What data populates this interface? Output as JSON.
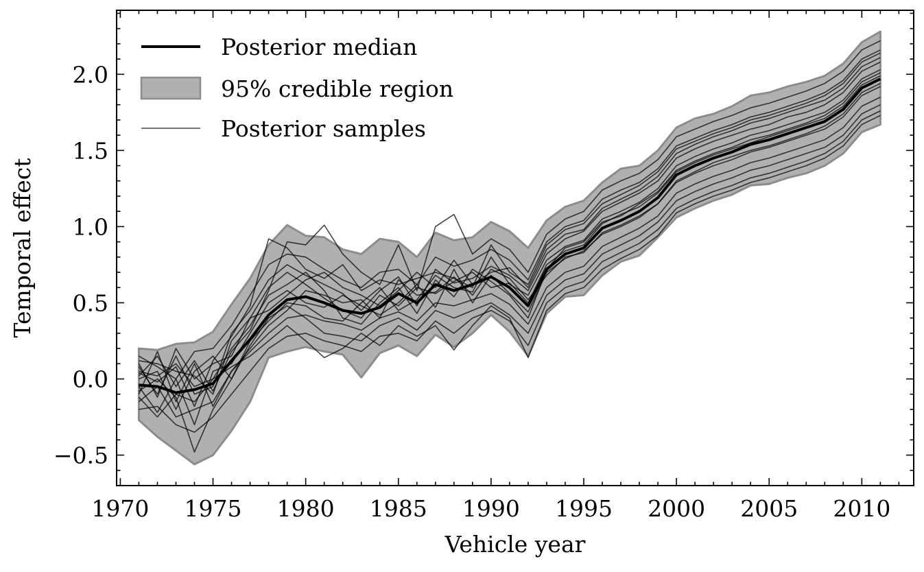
{
  "chart_data": {
    "type": "line",
    "xlabel": "Vehicle year",
    "ylabel": "Temporal effect",
    "xlim": [
      1969.8,
      2012.8
    ],
    "ylim": [
      -0.7,
      2.42
    ],
    "x_ticks": [
      1970,
      1975,
      1980,
      1985,
      1990,
      1995,
      2000,
      2005,
      2010
    ],
    "y_ticks": [
      -0.5,
      0.0,
      0.5,
      1.0,
      1.5,
      2.0
    ],
    "x_tick_labels": [
      "1970",
      "1975",
      "1980",
      "1985",
      "1990",
      "1995",
      "2000",
      "2005",
      "2010"
    ],
    "y_tick_labels": [
      "−0.5",
      "0.0",
      "0.5",
      "1.0",
      "1.5",
      "2.0"
    ],
    "grid": false,
    "legend_placement": "top-left",
    "x": [
      1971,
      1972,
      1973,
      1974,
      1975,
      1976,
      1977,
      1978,
      1979,
      1980,
      1981,
      1982,
      1983,
      1984,
      1985,
      1986,
      1987,
      1988,
      1989,
      1990,
      1991,
      1992,
      1993,
      1994,
      1995,
      1996,
      1997,
      1998,
      1999,
      2000,
      2001,
      2002,
      2003,
      2004,
      2005,
      2006,
      2007,
      2008,
      2009,
      2010,
      2011
    ],
    "series": [
      {
        "name": "Posterior median",
        "role": "median",
        "color": "#000000",
        "values": [
          -0.04,
          -0.05,
          -0.09,
          -0.07,
          -0.03,
          0.12,
          0.26,
          0.42,
          0.52,
          0.54,
          0.5,
          0.45,
          0.43,
          0.47,
          0.56,
          0.5,
          0.62,
          0.58,
          0.62,
          0.67,
          0.6,
          0.48,
          0.72,
          0.82,
          0.86,
          0.99,
          1.04,
          1.1,
          1.19,
          1.34,
          1.4,
          1.45,
          1.49,
          1.54,
          1.57,
          1.61,
          1.65,
          1.69,
          1.77,
          1.91,
          1.97
        ]
      },
      {
        "name": "95% credible region",
        "role": "band",
        "color": "#b0b0b0",
        "lower": [
          -0.27,
          -0.38,
          -0.47,
          -0.56,
          -0.5,
          -0.34,
          -0.15,
          0.14,
          0.18,
          0.21,
          0.18,
          0.16,
          0.01,
          0.17,
          0.22,
          0.15,
          0.29,
          0.21,
          0.3,
          0.42,
          0.31,
          0.15,
          0.43,
          0.54,
          0.55,
          0.68,
          0.77,
          0.81,
          0.93,
          1.06,
          1.12,
          1.17,
          1.21,
          1.27,
          1.28,
          1.32,
          1.35,
          1.4,
          1.48,
          1.62,
          1.67
        ],
        "upper": [
          0.2,
          0.19,
          0.23,
          0.24,
          0.31,
          0.49,
          0.66,
          0.88,
          1.01,
          0.94,
          0.93,
          0.85,
          0.82,
          0.92,
          0.9,
          0.8,
          0.96,
          0.91,
          0.93,
          1.03,
          0.97,
          0.86,
          1.04,
          1.13,
          1.17,
          1.29,
          1.38,
          1.4,
          1.5,
          1.65,
          1.71,
          1.74,
          1.79,
          1.86,
          1.88,
          1.92,
          1.95,
          1.99,
          2.07,
          2.21,
          2.28
        ]
      },
      {
        "name": "Posterior samples",
        "role": "samples",
        "color": "#000000",
        "samples": [
          [
            0.05,
            0.02,
            0.1,
            -0.05,
            0.0,
            0.2,
            0.35,
            0.55,
            0.62,
            0.7,
            0.58,
            0.4,
            0.36,
            0.5,
            0.6,
            0.43,
            0.65,
            0.54,
            0.72,
            0.64,
            0.55,
            0.4,
            0.72,
            0.86,
            0.9,
            1.03,
            1.07,
            1.15,
            1.23,
            1.37,
            1.43,
            1.48,
            1.52,
            1.57,
            1.6,
            1.64,
            1.68,
            1.73,
            1.81,
            1.95,
            2.01
          ],
          [
            -0.1,
            0.18,
            -0.15,
            0.1,
            -0.18,
            0.05,
            0.2,
            0.35,
            0.45,
            0.58,
            0.55,
            0.5,
            0.52,
            0.4,
            0.65,
            0.55,
            0.57,
            0.67,
            0.55,
            0.72,
            0.66,
            0.52,
            0.68,
            0.8,
            0.83,
            0.96,
            1.01,
            1.07,
            1.15,
            1.3,
            1.36,
            1.42,
            1.46,
            1.5,
            1.53,
            1.57,
            1.61,
            1.66,
            1.74,
            1.88,
            1.94
          ],
          [
            0.12,
            0.1,
            0.05,
            0.02,
            -0.1,
            0.25,
            0.4,
            0.6,
            0.7,
            0.62,
            0.53,
            0.45,
            0.4,
            0.55,
            0.48,
            0.6,
            0.56,
            0.64,
            0.7,
            0.6,
            0.63,
            0.5,
            0.75,
            0.84,
            0.88,
            1.02,
            1.08,
            1.13,
            1.22,
            1.36,
            1.42,
            1.47,
            1.51,
            1.55,
            1.59,
            1.63,
            1.67,
            1.71,
            1.79,
            1.93,
            1.99
          ],
          [
            -0.05,
            -0.22,
            0.0,
            -0.3,
            0.05,
            0.1,
            0.3,
            0.5,
            0.58,
            0.5,
            0.47,
            0.55,
            0.48,
            0.42,
            0.5,
            0.62,
            0.47,
            0.72,
            0.5,
            0.68,
            0.56,
            0.44,
            0.7,
            0.79,
            0.84,
            0.95,
            1.0,
            1.06,
            1.15,
            1.29,
            1.35,
            1.4,
            1.44,
            1.49,
            1.52,
            1.56,
            1.6,
            1.64,
            1.72,
            1.86,
            1.92
          ],
          [
            0.0,
            0.05,
            -0.2,
            0.05,
            0.15,
            0.0,
            0.25,
            0.38,
            0.5,
            0.48,
            0.4,
            0.38,
            0.5,
            0.6,
            0.45,
            0.52,
            0.68,
            0.6,
            0.57,
            0.8,
            0.62,
            0.55,
            0.78,
            0.87,
            0.91,
            1.05,
            1.1,
            1.16,
            1.25,
            1.4,
            1.46,
            1.51,
            1.55,
            1.6,
            1.63,
            1.67,
            1.71,
            1.75,
            1.83,
            1.97,
            2.03
          ],
          [
            0.08,
            -0.1,
            0.15,
            -0.1,
            -0.05,
            0.3,
            0.45,
            0.65,
            0.75,
            0.68,
            0.62,
            0.56,
            0.45,
            0.58,
            0.67,
            0.48,
            0.72,
            0.63,
            0.66,
            0.74,
            0.68,
            0.58,
            0.82,
            0.92,
            0.97,
            1.1,
            1.16,
            1.22,
            1.3,
            1.45,
            1.51,
            1.56,
            1.6,
            1.64,
            1.67,
            1.72,
            1.75,
            1.8,
            1.88,
            2.02,
            2.08
          ],
          [
            -0.15,
            -0.05,
            -0.25,
            -0.2,
            -0.15,
            0.05,
            0.18,
            0.3,
            0.4,
            0.42,
            0.38,
            0.36,
            0.32,
            0.4,
            0.44,
            0.38,
            0.5,
            0.48,
            0.52,
            0.56,
            0.49,
            0.36,
            0.6,
            0.7,
            0.74,
            0.87,
            0.93,
            0.99,
            1.07,
            1.22,
            1.28,
            1.33,
            1.37,
            1.42,
            1.45,
            1.49,
            1.53,
            1.57,
            1.65,
            1.79,
            1.85
          ],
          [
            0.15,
            0.08,
            0.0,
            0.18,
            0.2,
            0.35,
            0.55,
            0.75,
            0.82,
            0.8,
            0.72,
            0.65,
            0.6,
            0.7,
            0.72,
            0.62,
            0.8,
            0.74,
            0.78,
            0.85,
            0.78,
            0.65,
            0.9,
            1.0,
            1.04,
            1.18,
            1.24,
            1.29,
            1.38,
            1.53,
            1.58,
            1.63,
            1.67,
            1.72,
            1.75,
            1.79,
            1.83,
            1.88,
            1.96,
            2.1,
            2.16
          ],
          [
            -0.2,
            -0.18,
            -0.3,
            -0.35,
            -0.25,
            -0.1,
            0.05,
            0.2,
            0.28,
            0.3,
            0.25,
            0.22,
            0.18,
            0.28,
            0.3,
            0.25,
            0.38,
            0.3,
            0.4,
            0.45,
            0.38,
            0.22,
            0.5,
            0.6,
            0.64,
            0.77,
            0.83,
            0.89,
            0.98,
            1.12,
            1.18,
            1.23,
            1.27,
            1.32,
            1.35,
            1.39,
            1.43,
            1.48,
            1.56,
            1.7,
            1.76
          ],
          [
            0.1,
            -0.12,
            0.2,
            0.0,
            0.1,
            0.15,
            0.4,
            0.45,
            0.55,
            0.65,
            0.7,
            0.6,
            0.55,
            0.48,
            0.58,
            0.7,
            0.6,
            0.78,
            0.62,
            0.7,
            0.73,
            0.6,
            0.85,
            0.95,
            0.98,
            1.12,
            1.18,
            1.24,
            1.33,
            1.48,
            1.54,
            1.59,
            1.63,
            1.68,
            1.71,
            1.75,
            1.79,
            1.83,
            1.91,
            2.05,
            2.11
          ],
          [
            -0.08,
            0.0,
            -0.12,
            -0.48,
            -0.2,
            0.0,
            0.22,
            0.4,
            0.48,
            0.4,
            0.3,
            0.28,
            0.25,
            0.35,
            0.4,
            0.32,
            0.45,
            0.4,
            0.45,
            0.5,
            0.42,
            0.3,
            0.55,
            0.65,
            0.69,
            0.82,
            0.88,
            0.94,
            1.03,
            1.17,
            1.23,
            1.28,
            1.32,
            1.37,
            1.4,
            1.44,
            1.48,
            1.52,
            1.6,
            1.74,
            1.8
          ],
          [
            0.02,
            0.15,
            -0.05,
            0.12,
            -0.08,
            0.18,
            0.32,
            0.58,
            0.9,
            0.88,
            1.01,
            0.82,
            0.7,
            0.62,
            0.88,
            0.58,
            1.0,
            1.08,
            0.82,
            0.92,
            0.85,
            0.7,
            0.95,
            1.05,
            1.1,
            1.24,
            1.3,
            1.35,
            1.44,
            1.59,
            1.64,
            1.69,
            1.73,
            1.78,
            1.81,
            1.85,
            1.89,
            1.94,
            2.02,
            2.16,
            2.22
          ],
          [
            -0.12,
            -0.25,
            -0.1,
            -0.15,
            0.0,
            0.08,
            0.15,
            0.25,
            0.35,
            0.25,
            0.14,
            0.2,
            0.3,
            0.22,
            0.35,
            0.28,
            0.35,
            0.19,
            0.35,
            0.48,
            0.4,
            0.14,
            0.45,
            0.56,
            0.6,
            0.72,
            0.79,
            0.85,
            0.94,
            1.09,
            1.15,
            1.2,
            1.24,
            1.29,
            1.32,
            1.36,
            1.4,
            1.45,
            1.53,
            1.67,
            1.73
          ],
          [
            0.04,
            -0.02,
            0.08,
            -0.18,
            0.12,
            0.28,
            0.48,
            0.92,
            0.86,
            0.72,
            0.66,
            0.75,
            0.58,
            0.65,
            0.62,
            0.66,
            0.7,
            0.66,
            0.6,
            0.88,
            0.7,
            0.62,
            0.88,
            0.98,
            1.02,
            1.15,
            1.21,
            1.27,
            1.36,
            1.51,
            1.56,
            1.61,
            1.65,
            1.7,
            1.73,
            1.77,
            1.81,
            1.86,
            1.94,
            2.08,
            2.14
          ]
        ]
      }
    ]
  }
}
